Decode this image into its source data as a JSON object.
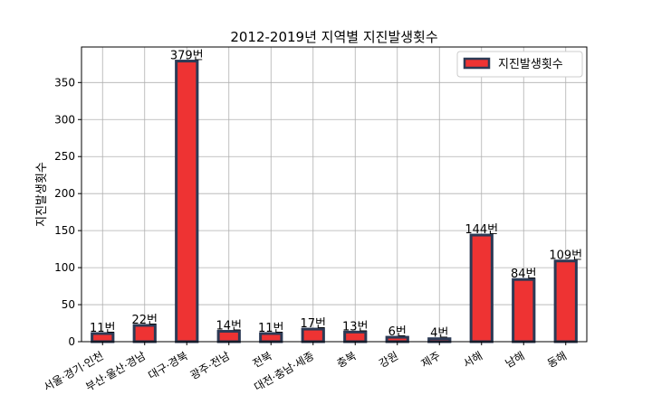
{
  "chart_data": {
    "type": "bar",
    "title": "2012-2019년 지역별 지진발생횟수",
    "xlabel": "",
    "ylabel": "지진발생횟수",
    "categories": [
      "서울·경기·인천",
      "부산·울산·경남",
      "대구·경북",
      "광주·전남",
      "전북",
      "대전·충남·세종",
      "충북",
      "강원",
      "제주",
      "서해",
      "남해",
      "동해"
    ],
    "series": [
      {
        "name": "지진발생횟수",
        "values": [
          11,
          22,
          379,
          14,
          11,
          17,
          13,
          6,
          4,
          144,
          84,
          109
        ]
      }
    ],
    "data_labels": [
      "11번",
      "22번",
      "379번",
      "14번",
      "11번",
      "17번",
      "13번",
      "6번",
      "4번",
      "144번",
      "84번",
      "109번"
    ],
    "yticks": [
      0,
      50,
      100,
      150,
      200,
      250,
      300,
      350
    ],
    "ylim": [
      0,
      398
    ],
    "grid": true,
    "legend_position": "top-right",
    "colors": {
      "bar_fill": "#ee3333",
      "bar_edge": "#2c3a55"
    }
  }
}
